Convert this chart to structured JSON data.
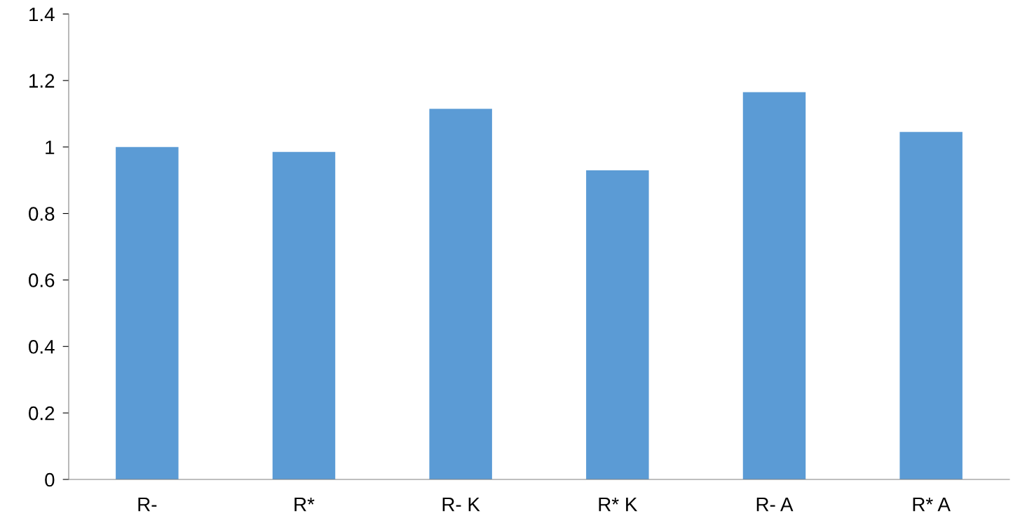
{
  "chart_data": {
    "type": "bar",
    "categories": [
      "R-",
      "R*",
      "R- K",
      "R* K",
      "R- A",
      "R* A"
    ],
    "values": [
      1.0,
      0.985,
      1.115,
      0.93,
      1.165,
      1.045
    ],
    "color": "#5b9bd5",
    "ylim": [
      0,
      1.4
    ],
    "yticks": [
      {
        "value": 0,
        "label": "0"
      },
      0.2,
      0.4,
      0.6,
      0.8,
      {
        "value": 1,
        "label": "1"
      },
      1.2,
      1.4
    ],
    "grid": false,
    "legend": false
  }
}
